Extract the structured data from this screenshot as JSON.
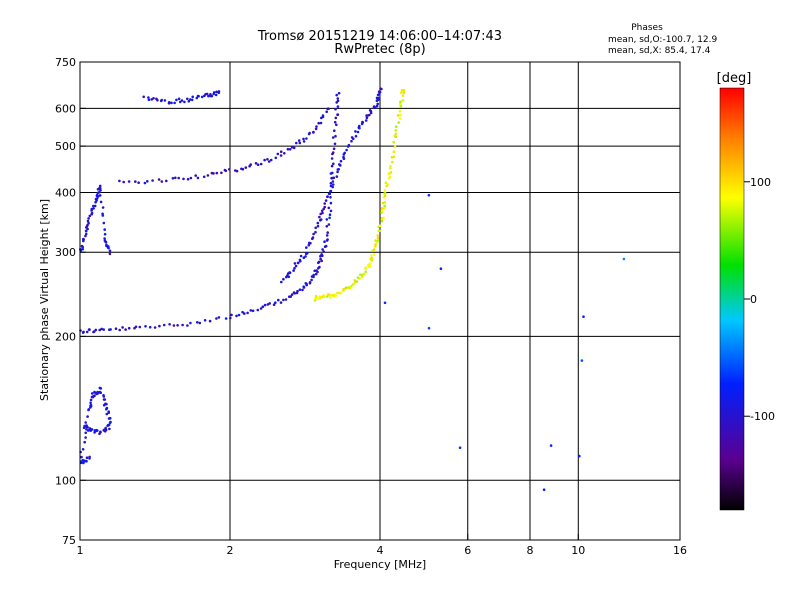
{
  "chart_data": {
    "type": "scatter",
    "title": "Tromsø 20151219 14:06:00–14:07:43",
    "subtitle": "RwPretec (8p)",
    "xlabel": "Frequency [MHz]",
    "ylabel": "Stationary phase Virtual Height [km]",
    "x_scale": "log",
    "y_scale": "log",
    "xlim": [
      1,
      16
    ],
    "ylim": [
      75,
      750
    ],
    "x_ticks": [
      1,
      2,
      4,
      6,
      8,
      10,
      16
    ],
    "x_tick_labels": [
      "1",
      "2",
      "4",
      "6",
      "8",
      "10",
      "16"
    ],
    "y_ticks": [
      75,
      100,
      200,
      300,
      400,
      500,
      600,
      750
    ],
    "y_tick_labels": [
      "75",
      "100",
      "200",
      "300",
      "400",
      "500",
      "600",
      "750"
    ],
    "x_gridlines": [
      2,
      4,
      6,
      8,
      10
    ],
    "y_gridlines": [
      100,
      200,
      300,
      400,
      500,
      600
    ],
    "info": {
      "heading": "Phases",
      "line1": "mean, sd,O:-100.7, 12.9",
      "line2": "mean, sd,X:  85.4, 17.4"
    },
    "colorbar": {
      "label": "[deg]",
      "range": [
        -180,
        180
      ],
      "ticks": [
        100,
        0,
        -100
      ],
      "tick_labels": [
        "100",
        "0",
        "-100"
      ]
    },
    "series": [
      {
        "name": "O-mode F2 lower trace",
        "color_phase": -100,
        "points": [
          [
            1.0,
            205
          ],
          [
            1.1,
            206
          ],
          [
            1.3,
            208
          ],
          [
            1.6,
            212
          ],
          [
            2.0,
            220
          ],
          [
            2.3,
            228
          ],
          [
            2.6,
            240
          ],
          [
            2.8,
            252
          ],
          [
            2.95,
            268
          ],
          [
            3.05,
            290
          ],
          [
            3.12,
            320
          ],
          [
            3.18,
            380
          ],
          [
            3.22,
            460
          ],
          [
            3.26,
            560
          ],
          [
            3.3,
            650
          ]
        ]
      },
      {
        "name": "O-mode F2 upper trace",
        "color_phase": -105,
        "points": [
          [
            1.2,
            420
          ],
          [
            1.5,
            425
          ],
          [
            1.8,
            435
          ],
          [
            2.1,
            448
          ],
          [
            2.4,
            468
          ],
          [
            2.7,
            500
          ],
          [
            2.95,
            540
          ],
          [
            3.15,
            600
          ]
        ]
      },
      {
        "name": "O-mode trace to 4 MHz",
        "color_phase": -95,
        "points": [
          [
            2.55,
            260
          ],
          [
            2.7,
            280
          ],
          [
            2.85,
            300
          ],
          [
            3.0,
            340
          ],
          [
            3.1,
            380
          ],
          [
            3.25,
            430
          ],
          [
            3.4,
            480
          ],
          [
            3.6,
            540
          ],
          [
            3.8,
            580
          ],
          [
            3.95,
            620
          ],
          [
            4.0,
            660
          ]
        ]
      },
      {
        "name": "X-mode trace",
        "color_phase": 85,
        "points": [
          [
            2.95,
            240
          ],
          [
            3.1,
            242
          ],
          [
            3.3,
            246
          ],
          [
            3.5,
            255
          ],
          [
            3.7,
            270
          ],
          [
            3.85,
            290
          ],
          [
            3.95,
            320
          ],
          [
            4.05,
            360
          ],
          [
            4.1,
            400
          ],
          [
            4.2,
            450
          ],
          [
            4.3,
            520
          ],
          [
            4.4,
            600
          ],
          [
            4.45,
            660
          ]
        ]
      },
      {
        "name": "Near 1 MHz vertical cluster",
        "color_phase": -95,
        "points": [
          [
            1.0,
            300
          ],
          [
            1.03,
            330
          ],
          [
            1.05,
            360
          ],
          [
            1.08,
            390
          ],
          [
            1.1,
            415
          ],
          [
            1.12,
            320
          ],
          [
            1.15,
            300
          ]
        ]
      },
      {
        "name": "Low-height hook near 1.1 MHz",
        "color_phase": -90,
        "points": [
          [
            1.02,
            130
          ],
          [
            1.05,
            127
          ],
          [
            1.1,
            126
          ],
          [
            1.15,
            130
          ],
          [
            1.13,
            142
          ],
          [
            1.1,
            155
          ],
          [
            1.06,
            150
          ],
          [
            1.04,
            140
          ],
          [
            1.0,
            108
          ],
          [
            1.05,
            112
          ]
        ]
      },
      {
        "name": "Isolated echo 1.4–1.9 MHz",
        "color_phase": -95,
        "points": [
          [
            1.35,
            630
          ],
          [
            1.5,
            620
          ],
          [
            1.65,
            625
          ],
          [
            1.8,
            640
          ],
          [
            1.9,
            645
          ]
        ]
      },
      {
        "name": "Scattered points",
        "color_phase": -60,
        "points": [
          [
            4.1,
            235
          ],
          [
            5.0,
            395
          ],
          [
            5.3,
            275
          ],
          [
            5.0,
            208
          ],
          [
            5.8,
            117
          ],
          [
            8.5,
            96
          ],
          [
            8.8,
            118
          ],
          [
            10.1,
            112
          ],
          [
            10.2,
            222
          ],
          [
            10.1,
            177
          ],
          [
            12.4,
            290
          ]
        ]
      }
    ]
  }
}
